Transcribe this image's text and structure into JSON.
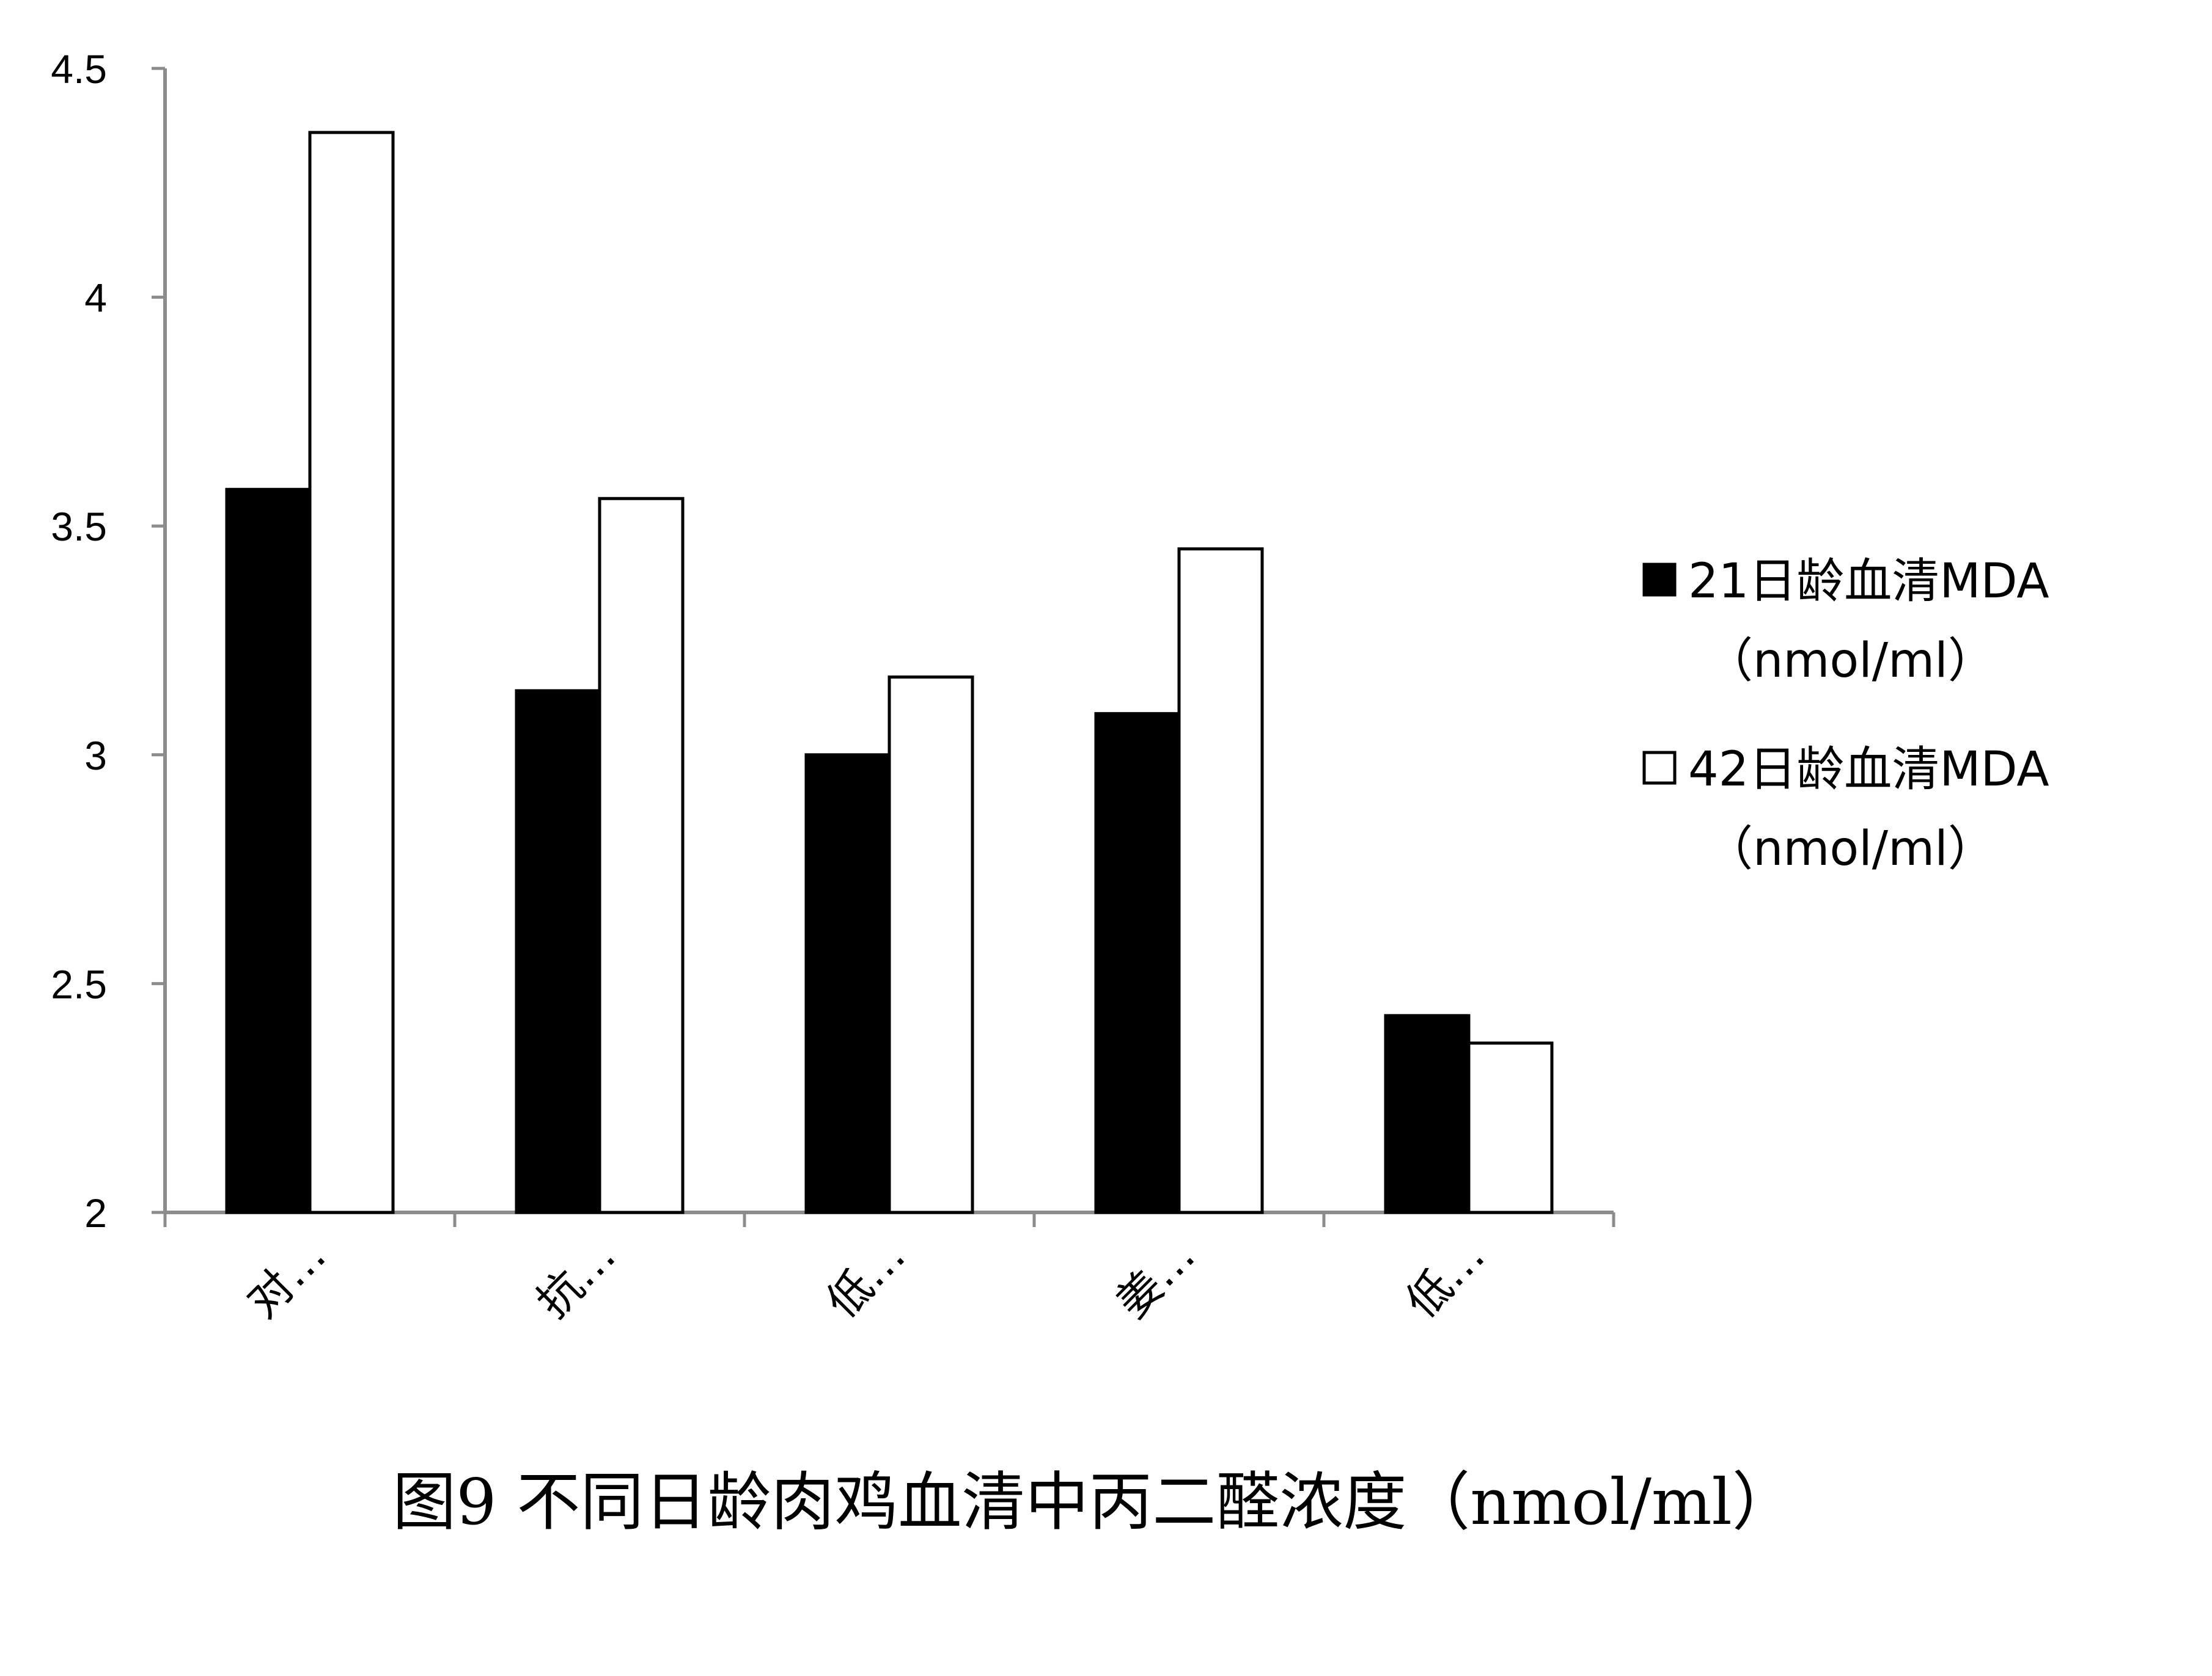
{
  "chart_data": {
    "type": "bar",
    "title": "",
    "caption": "图9 不同日龄肉鸡血清中丙二醛浓度（nmol/ml）",
    "xlabel": "",
    "ylabel": "",
    "ylim": [
      2,
      4.5
    ],
    "yticks": [
      "2",
      "2.5",
      "3",
      "3.5",
      "4",
      "4.5"
    ],
    "categories": [
      "对…",
      "抗…",
      "低…",
      "姜…",
      "低…"
    ],
    "series": [
      {
        "name": "21日龄血清MDA（nmol/ml）",
        "legend_lines": [
          "21日龄血清MDA",
          "（nmol/ml）"
        ],
        "color": "#000000",
        "values": [
          3.58,
          3.14,
          3.0,
          3.09,
          2.43
        ]
      },
      {
        "name": "42日龄血清MDA（nmol/ml）",
        "legend_lines": [
          "42日龄血清MDA",
          "（nmol/ml）"
        ],
        "color": "#ffffff",
        "values": [
          4.36,
          3.56,
          3.17,
          3.45,
          2.37
        ]
      }
    ],
    "grid": false,
    "legend_position": "right"
  }
}
